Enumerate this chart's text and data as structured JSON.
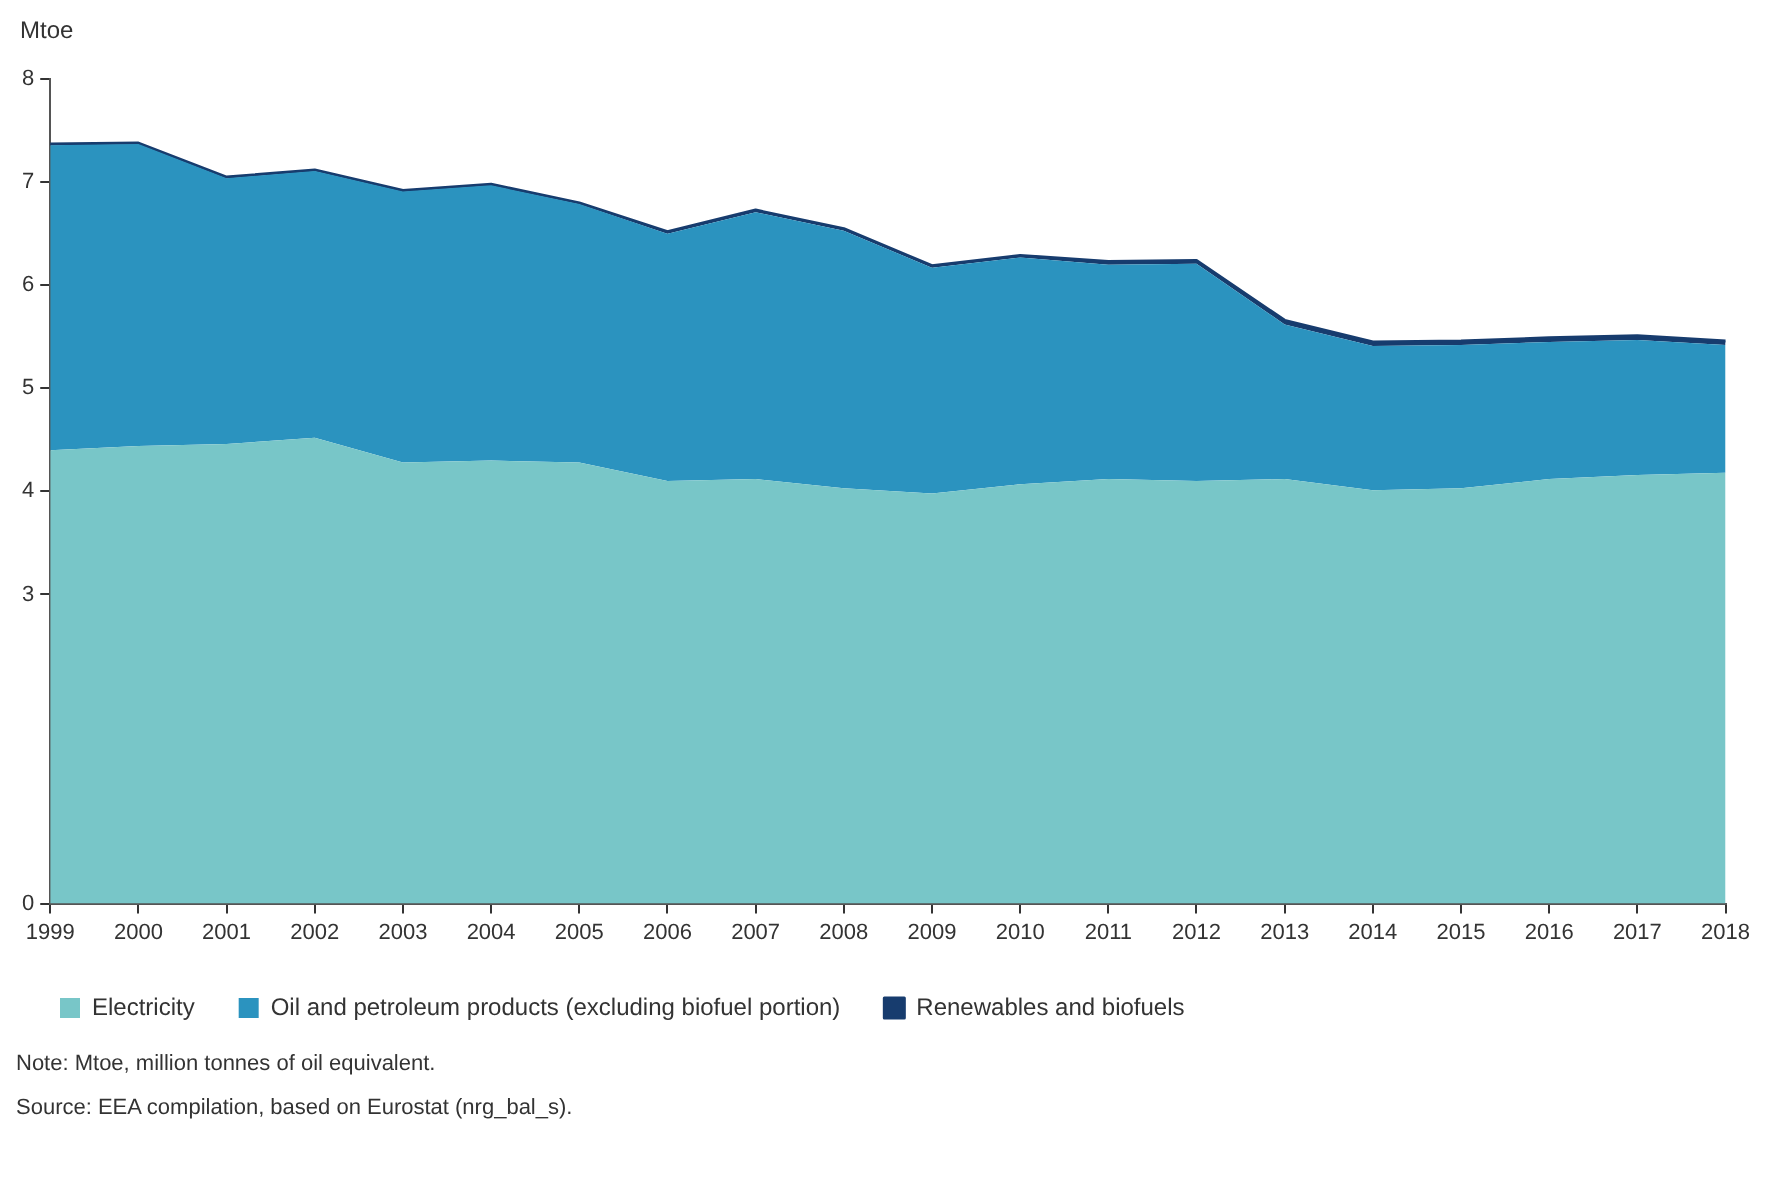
{
  "chart_data": {
    "type": "area",
    "ylabel": "Mtoe",
    "stacked": true,
    "grid": false,
    "legend": "bottom",
    "categories": [
      "1999",
      "2000",
      "2001",
      "2002",
      "2003",
      "2004",
      "2005",
      "2006",
      "2007",
      "2008",
      "2009",
      "2010",
      "2011",
      "2012",
      "2013",
      "2014",
      "2015",
      "2016",
      "2017",
      "2018"
    ],
    "series": [
      {
        "name": "Electricity",
        "color": "#78c6c8",
        "values": [
          4.4,
          4.44,
          4.46,
          4.52,
          4.28,
          4.3,
          4.28,
          4.1,
          4.12,
          4.03,
          3.98,
          4.07,
          4.12,
          4.1,
          4.12,
          4.01,
          4.03,
          4.12,
          4.16,
          4.18
        ]
      },
      {
        "name": "Oil and petroleum products (excluding biofuel portion)",
        "color": "#2b93bf",
        "values": [
          2.96,
          2.93,
          2.58,
          2.59,
          2.63,
          2.67,
          2.51,
          2.4,
          2.59,
          2.5,
          2.19,
          2.2,
          2.08,
          2.11,
          1.5,
          1.4,
          1.39,
          1.33,
          1.31,
          1.24
        ]
      },
      {
        "name": "Renewables and biofuels",
        "color": "#173c6e",
        "values": [
          0.01,
          0.01,
          0.01,
          0.01,
          0.01,
          0.01,
          0.01,
          0.02,
          0.02,
          0.02,
          0.02,
          0.02,
          0.03,
          0.03,
          0.04,
          0.04,
          0.04,
          0.04,
          0.04,
          0.04
        ]
      }
    ],
    "ylim": [
      0,
      8
    ],
    "yticks": [
      0,
      3,
      4,
      5,
      6,
      7,
      8
    ],
    "annotations": [
      "Note: Mtoe, million tonnes of oil equivalent.",
      "Source: EEA compilation, based on Eurostat (nrg_bal_s)."
    ]
  }
}
